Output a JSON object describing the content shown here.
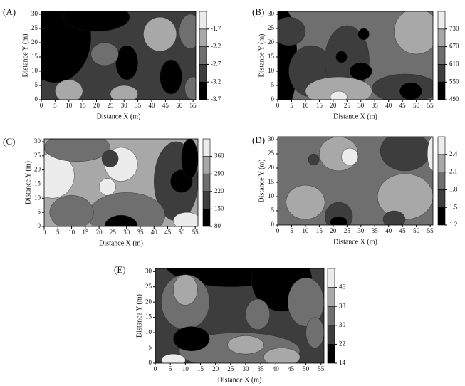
{
  "chart_data": [
    {
      "type": "contour",
      "title": "(A)",
      "x_label": "Distance X (m)",
      "y_label": "Distance Y (m)",
      "xlim": [
        0,
        56
      ],
      "ylim": [
        0,
        31
      ],
      "xticks": [
        0,
        5,
        10,
        15,
        20,
        25,
        30,
        35,
        40,
        45,
        50,
        55
      ],
      "yticks": [
        0,
        5,
        10,
        15,
        20,
        25,
        30
      ],
      "clim": [
        -3.7,
        -1.2
      ],
      "cticks": [
        -3.7,
        -3.2,
        -2.7,
        -2.2,
        -1.7
      ],
      "colors": [
        "#000000",
        "#3d3d3d",
        "#6f6f6f",
        "#a8a8a8",
        "#ececec"
      ]
    },
    {
      "type": "contour",
      "title": "(B)",
      "x_label": "Distance X (m)",
      "y_label": "Distance Y (m)",
      "xlim": [
        0,
        56
      ],
      "ylim": [
        0,
        31
      ],
      "xticks": [
        0,
        5,
        10,
        15,
        20,
        25,
        30,
        35,
        40,
        45,
        50,
        55
      ],
      "yticks": [
        0,
        5,
        10,
        15,
        20,
        25,
        30
      ],
      "clim": [
        490,
        790
      ],
      "cticks": [
        490,
        550,
        610,
        670,
        730
      ],
      "colors": [
        "#000000",
        "#3d3d3d",
        "#6f6f6f",
        "#a8a8a8",
        "#ececec"
      ]
    },
    {
      "type": "contour",
      "title": "(C)",
      "x_label": "Distance X (m)",
      "y_label": "Distance Y (m)",
      "xlim": [
        0,
        56
      ],
      "ylim": [
        0,
        31
      ],
      "xticks": [
        0,
        5,
        10,
        15,
        20,
        25,
        30,
        35,
        40,
        45,
        50,
        55
      ],
      "yticks": [
        0,
        5,
        10,
        15,
        20,
        25,
        30
      ],
      "clim": [
        80,
        430
      ],
      "cticks": [
        80,
        150,
        220,
        290,
        360
      ],
      "colors": [
        "#000000",
        "#3d3d3d",
        "#6f6f6f",
        "#a8a8a8",
        "#ececec"
      ]
    },
    {
      "type": "contour",
      "title": "(D)",
      "x_label": "Distance X (m)",
      "y_label": "Distance Y (m)",
      "xlim": [
        0,
        56
      ],
      "ylim": [
        0,
        31
      ],
      "xticks": [
        0,
        5,
        10,
        15,
        20,
        25,
        30,
        35,
        40,
        45,
        50,
        55
      ],
      "yticks": [
        0,
        5,
        10,
        15,
        20,
        25,
        30
      ],
      "clim": [
        1.2,
        2.7
      ],
      "cticks": [
        1.2,
        1.5,
        1.8,
        2.1,
        2.4
      ],
      "colors": [
        "#000000",
        "#3d3d3d",
        "#6f6f6f",
        "#a8a8a8",
        "#ececec"
      ]
    },
    {
      "type": "contour",
      "title": "(E)",
      "x_label": "Distance X (m)",
      "y_label": "Distance Y (m)",
      "xlim": [
        0,
        56
      ],
      "ylim": [
        0,
        31
      ],
      "xticks": [
        0,
        5,
        10,
        15,
        20,
        25,
        30,
        35,
        40,
        45,
        50,
        55
      ],
      "yticks": [
        0,
        5,
        10,
        15,
        20,
        25,
        30
      ],
      "clim": [
        14,
        54
      ],
      "cticks": [
        14,
        22,
        30,
        38,
        46
      ],
      "colors": [
        "#000000",
        "#3d3d3d",
        "#6f6f6f",
        "#a8a8a8",
        "#ececec"
      ]
    }
  ]
}
